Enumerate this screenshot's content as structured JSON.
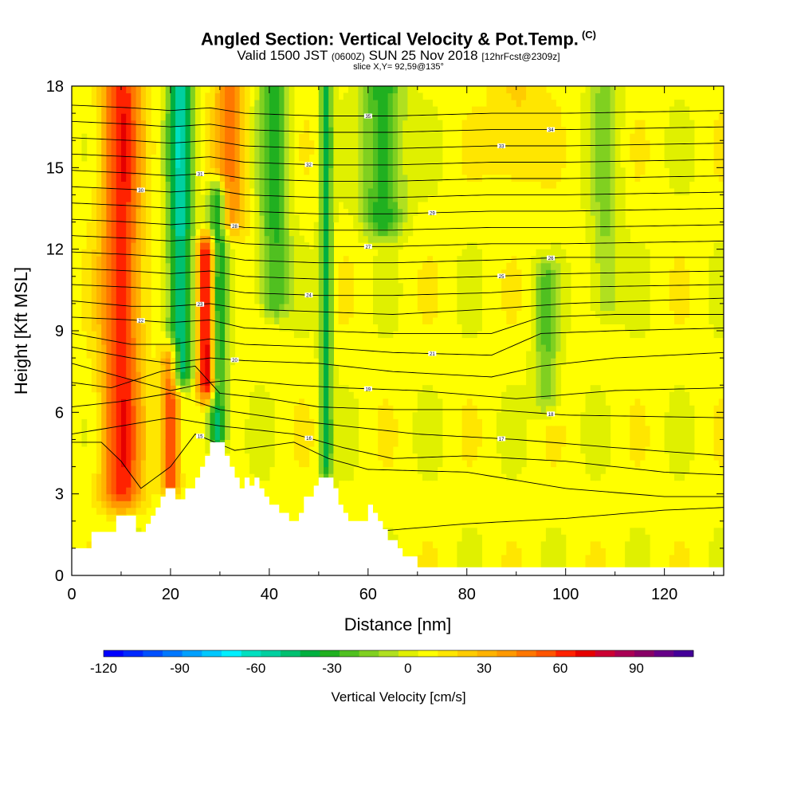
{
  "header": {
    "title": "Angled Section: Vertical Velocity & Pot.Temp.",
    "title_unit": "(C)",
    "valid_prefix": "Valid 1500 JST",
    "valid_utc": "(0600Z)",
    "valid_date": "SUN 25 Nov 2018",
    "forecast": "[12hrFcst@2309z]",
    "slice": "slice X,Y= 92,59@135°"
  },
  "chart_data": {
    "type": "heatmap",
    "xlabel": "Distance [nm]",
    "ylabel": "Height [Kft MSL]",
    "xlim": [
      0,
      132
    ],
    "ylim": [
      0,
      18
    ],
    "x_ticks": [
      0,
      20,
      40,
      60,
      80,
      100,
      120
    ],
    "y_ticks": [
      0,
      3,
      6,
      9,
      12,
      15,
      18
    ],
    "colorbar": {
      "label": "Vertical Velocity [cm/s]",
      "range": [
        -120,
        112.5
      ],
      "step": 7.5,
      "tick_values": [
        -120,
        -90,
        -60,
        -30,
        0,
        30,
        60,
        90
      ],
      "colors": [
        "#0000ff",
        "#0028ff",
        "#0050ff",
        "#0078ff",
        "#00a0ff",
        "#00c8ff",
        "#00f0ff",
        "#00e0c0",
        "#00d0a0",
        "#00c070",
        "#00b040",
        "#20b020",
        "#50c020",
        "#80d020",
        "#b0e020",
        "#e0f000",
        "#ffff00",
        "#ffe600",
        "#ffcc00",
        "#ffb300",
        "#ff9900",
        "#ff7700",
        "#ff5500",
        "#ff2200",
        "#e60000",
        "#cc0033",
        "#aa0055",
        "#880066",
        "#660088",
        "#440099"
      ]
    },
    "velocity_features": [
      {
        "x_center": 10,
        "width": 4,
        "z_bottom": 3,
        "z_top": 18,
        "peak_cm_s": 55
      },
      {
        "x_center": 20,
        "width": 1.8,
        "z_bottom": 3.5,
        "z_top": 8,
        "peak_cm_s": 55
      },
      {
        "x_center": 22,
        "width": 2.5,
        "z_bottom": 7.5,
        "z_top": 18,
        "peak_cm_s": -60
      },
      {
        "x_center": 27.5,
        "width": 2,
        "z_bottom": 7,
        "z_top": 12,
        "peak_cm_s": 75
      },
      {
        "x_center": 29.5,
        "width": 1.8,
        "z_bottom": 5,
        "z_top": 14,
        "peak_cm_s": -55
      },
      {
        "x_center": 32,
        "width": 3,
        "z_bottom": 13,
        "z_top": 18,
        "peak_cm_s": 35
      },
      {
        "x_center": 41,
        "width": 3,
        "z_bottom": 10,
        "z_top": 18,
        "peak_cm_s": -35
      },
      {
        "x_center": 51.5,
        "width": 1.2,
        "z_bottom": 4,
        "z_top": 18,
        "peak_cm_s": -45
      },
      {
        "x_center": 63,
        "width": 4,
        "z_bottom": 13,
        "z_top": 18,
        "peak_cm_s": -40
      },
      {
        "x_center": 96,
        "width": 2.5,
        "z_bottom": 6.5,
        "z_top": 11,
        "peak_cm_s": -25
      },
      {
        "x_center": 108,
        "width": 3,
        "z_bottom": 10,
        "z_top": 18,
        "peak_cm_s": -20
      },
      {
        "x_center": 90,
        "width": 5,
        "z_bottom": 15,
        "z_top": 18,
        "peak_cm_s": 15
      }
    ],
    "terrain": {
      "x": [
        0,
        4,
        4,
        9,
        9,
        13,
        13,
        15,
        15,
        16,
        16,
        17,
        17,
        18,
        18,
        19,
        19,
        21,
        21,
        23,
        23,
        25,
        25,
        26,
        26,
        27,
        27,
        28,
        28,
        31,
        31,
        32,
        32,
        33,
        33,
        34,
        34,
        35,
        35,
        36,
        36,
        37,
        37,
        38,
        38,
        39,
        39,
        40,
        40,
        42,
        42,
        44,
        44,
        46,
        46,
        47,
        47,
        49,
        49,
        50,
        50,
        53,
        53,
        54,
        54,
        55,
        55,
        56,
        56,
        60,
        60,
        61,
        61,
        62,
        62,
        63,
        63,
        64,
        64,
        66,
        66,
        67,
        67,
        70,
        70
      ],
      "z": [
        1,
        1,
        1.6,
        1.6,
        2.2,
        2.2,
        1.6,
        1.6,
        1.9,
        1.9,
        2.2,
        2.2,
        2.5,
        2.5,
        2.9,
        2.9,
        3.2,
        3.2,
        2.8,
        2.8,
        3.2,
        3.2,
        3.6,
        3.6,
        4.0,
        4.0,
        4.4,
        4.4,
        4.9,
        4.9,
        4.4,
        4.4,
        4.0,
        4.0,
        3.6,
        3.6,
        3.2,
        3.2,
        3.6,
        3.6,
        3.3,
        3.3,
        3.6,
        3.6,
        3.2,
        3.2,
        2.9,
        2.9,
        2.6,
        2.6,
        2.3,
        2.3,
        2.0,
        2.0,
        2.3,
        2.3,
        2.9,
        2.9,
        3.3,
        3.3,
        3.6,
        3.6,
        3.2,
        3.2,
        2.6,
        2.6,
        2.3,
        2.3,
        2.0,
        2.0,
        2.6,
        2.6,
        2.3,
        2.3,
        2.0,
        2.0,
        1.7,
        1.7,
        1.3,
        1.3,
        1.0,
        1.0,
        0.7,
        0.7,
        0.3
      ]
    },
    "isentropes": [
      {
        "label": "14",
        "z_at": [
          [
            0,
            0.9
          ],
          [
            20,
            0.8
          ],
          [
            40,
            1.0
          ],
          [
            60,
            1.6
          ],
          [
            80,
            1.9
          ],
          [
            100,
            2.1
          ],
          [
            120,
            2.4
          ],
          [
            132,
            2.5
          ]
        ]
      },
      {
        "label": "15",
        "z_at": [
          [
            0,
            4.9
          ],
          [
            6,
            4.9
          ],
          [
            10,
            4.2
          ],
          [
            14,
            3.2
          ],
          [
            20,
            4.0
          ],
          [
            25,
            5.2
          ],
          [
            33,
            4.6
          ],
          [
            45,
            4.9
          ],
          [
            52,
            4.3
          ],
          [
            60,
            3.9
          ],
          [
            80,
            3.8
          ],
          [
            100,
            3.2
          ],
          [
            120,
            2.9
          ],
          [
            132,
            2.9
          ]
        ]
      },
      {
        "label": "16",
        "z_at": [
          [
            0,
            5.2
          ],
          [
            10,
            5.5
          ],
          [
            20,
            5.8
          ],
          [
            30,
            5.5
          ],
          [
            45,
            5.2
          ],
          [
            55,
            4.7
          ],
          [
            65,
            4.3
          ],
          [
            80,
            4.4
          ],
          [
            100,
            4.2
          ],
          [
            120,
            3.8
          ],
          [
            132,
            3.7
          ]
        ]
      },
      {
        "label": "17",
        "z_at": [
          [
            0,
            6.2
          ],
          [
            10,
            6.4
          ],
          [
            20,
            6.7
          ],
          [
            30,
            6.1
          ],
          [
            45,
            5.7
          ],
          [
            55,
            5.5
          ],
          [
            70,
            5.2
          ],
          [
            90,
            5.0
          ],
          [
            110,
            4.7
          ],
          [
            132,
            4.4
          ]
        ]
      },
      {
        "label": "18",
        "z_at": [
          [
            0,
            7.1
          ],
          [
            8,
            6.9
          ],
          [
            18,
            7.5
          ],
          [
            25,
            7.7
          ],
          [
            30,
            6.7
          ],
          [
            40,
            6.5
          ],
          [
            50,
            6.2
          ],
          [
            65,
            6.1
          ],
          [
            85,
            6.1
          ],
          [
            100,
            5.9
          ],
          [
            132,
            5.8
          ]
        ]
      },
      {
        "label": "19",
        "z_at": [
          [
            0,
            7.8
          ],
          [
            10,
            7.3
          ],
          [
            20,
            6.8
          ],
          [
            28,
            7.1
          ],
          [
            33,
            7.2
          ],
          [
            45,
            7.0
          ],
          [
            55,
            6.9
          ],
          [
            70,
            6.8
          ],
          [
            90,
            6.5
          ],
          [
            110,
            6.8
          ],
          [
            132,
            6.9
          ]
        ]
      },
      {
        "label": "20",
        "z_at": [
          [
            0,
            8.4
          ],
          [
            12,
            8.0
          ],
          [
            20,
            7.8
          ],
          [
            28,
            8.0
          ],
          [
            35,
            7.9
          ],
          [
            50,
            7.8
          ],
          [
            65,
            7.5
          ],
          [
            85,
            7.3
          ],
          [
            95,
            7.7
          ],
          [
            110,
            8.0
          ],
          [
            132,
            8.2
          ]
        ]
      },
      {
        "label": "21",
        "z_at": [
          [
            0,
            8.9
          ],
          [
            12,
            8.5
          ],
          [
            20,
            8.5
          ],
          [
            28,
            8.7
          ],
          [
            35,
            8.5
          ],
          [
            50,
            8.4
          ],
          [
            65,
            8.2
          ],
          [
            85,
            8.1
          ],
          [
            95,
            8.9
          ],
          [
            110,
            9.0
          ],
          [
            132,
            9.1
          ]
        ]
      },
      {
        "label": "22",
        "z_at": [
          [
            0,
            9.5
          ],
          [
            12,
            9.4
          ],
          [
            20,
            9.3
          ],
          [
            28,
            9.4
          ],
          [
            35,
            9.1
          ],
          [
            50,
            9.0
          ],
          [
            65,
            8.9
          ],
          [
            85,
            8.9
          ],
          [
            95,
            9.5
          ],
          [
            110,
            9.6
          ],
          [
            132,
            9.6
          ]
        ]
      },
      {
        "label": "23",
        "z_at": [
          [
            0,
            10.1
          ],
          [
            12,
            9.9
          ],
          [
            20,
            9.9
          ],
          [
            28,
            10.0
          ],
          [
            35,
            9.8
          ],
          [
            50,
            9.7
          ],
          [
            65,
            9.6
          ],
          [
            85,
            9.8
          ],
          [
            100,
            10.0
          ],
          [
            132,
            10.2
          ]
        ]
      },
      {
        "label": "24",
        "z_at": [
          [
            0,
            10.7
          ],
          [
            12,
            10.6
          ],
          [
            20,
            10.5
          ],
          [
            28,
            10.6
          ],
          [
            35,
            10.4
          ],
          [
            50,
            10.3
          ],
          [
            65,
            10.3
          ],
          [
            85,
            10.4
          ],
          [
            100,
            10.6
          ],
          [
            132,
            10.7
          ]
        ]
      },
      {
        "label": "25",
        "z_at": [
          [
            0,
            11.3
          ],
          [
            12,
            11.2
          ],
          [
            20,
            11.1
          ],
          [
            28,
            11.2
          ],
          [
            35,
            11.0
          ],
          [
            50,
            10.9
          ],
          [
            65,
            10.9
          ],
          [
            85,
            11.0
          ],
          [
            100,
            11.1
          ],
          [
            132,
            11.2
          ]
        ]
      },
      {
        "label": "26",
        "z_at": [
          [
            0,
            11.9
          ],
          [
            12,
            11.8
          ],
          [
            20,
            11.7
          ],
          [
            28,
            11.8
          ],
          [
            35,
            11.6
          ],
          [
            50,
            11.5
          ],
          [
            65,
            11.5
          ],
          [
            85,
            11.6
          ],
          [
            100,
            11.7
          ],
          [
            132,
            11.7
          ]
        ]
      },
      {
        "label": "27",
        "z_at": [
          [
            0,
            12.5
          ],
          [
            12,
            12.4
          ],
          [
            20,
            12.3
          ],
          [
            28,
            12.4
          ],
          [
            35,
            12.2
          ],
          [
            50,
            12.1
          ],
          [
            65,
            12.1
          ],
          [
            85,
            12.2
          ],
          [
            100,
            12.2
          ],
          [
            132,
            12.3
          ]
        ]
      },
      {
        "label": "28",
        "z_at": [
          [
            0,
            13.1
          ],
          [
            12,
            13.0
          ],
          [
            20,
            12.9
          ],
          [
            28,
            13.0
          ],
          [
            35,
            12.8
          ],
          [
            50,
            12.7
          ],
          [
            65,
            12.7
          ],
          [
            85,
            12.8
          ],
          [
            100,
            12.8
          ],
          [
            132,
            12.9
          ]
        ]
      },
      {
        "label": "29",
        "z_at": [
          [
            0,
            13.7
          ],
          [
            12,
            13.6
          ],
          [
            20,
            13.5
          ],
          [
            28,
            13.6
          ],
          [
            35,
            13.4
          ],
          [
            50,
            13.3
          ],
          [
            65,
            13.3
          ],
          [
            85,
            13.4
          ],
          [
            100,
            13.4
          ],
          [
            132,
            13.5
          ]
        ]
      },
      {
        "label": "30",
        "z_at": [
          [
            0,
            14.3
          ],
          [
            12,
            14.2
          ],
          [
            20,
            14.1
          ],
          [
            28,
            14.2
          ],
          [
            35,
            14.0
          ],
          [
            50,
            13.9
          ],
          [
            65,
            13.9
          ],
          [
            85,
            14.0
          ],
          [
            100,
            14.0
          ],
          [
            132,
            14.1
          ]
        ]
      },
      {
        "label": "31",
        "z_at": [
          [
            0,
            14.9
          ],
          [
            12,
            14.8
          ],
          [
            20,
            14.7
          ],
          [
            28,
            14.8
          ],
          [
            35,
            14.6
          ],
          [
            50,
            14.5
          ],
          [
            65,
            14.5
          ],
          [
            85,
            14.6
          ],
          [
            100,
            14.6
          ],
          [
            132,
            14.7
          ]
        ]
      },
      {
        "label": "32",
        "z_at": [
          [
            0,
            15.5
          ],
          [
            12,
            15.4
          ],
          [
            20,
            15.3
          ],
          [
            28,
            15.4
          ],
          [
            35,
            15.2
          ],
          [
            50,
            15.1
          ],
          [
            65,
            15.1
          ],
          [
            85,
            15.2
          ],
          [
            100,
            15.2
          ],
          [
            132,
            15.3
          ]
        ]
      },
      {
        "label": "33",
        "z_at": [
          [
            0,
            16.1
          ],
          [
            12,
            16.0
          ],
          [
            20,
            15.9
          ],
          [
            28,
            16.0
          ],
          [
            35,
            15.8
          ],
          [
            50,
            15.7
          ],
          [
            65,
            15.7
          ],
          [
            85,
            15.8
          ],
          [
            100,
            15.8
          ],
          [
            132,
            15.9
          ]
        ]
      },
      {
        "label": "34",
        "z_at": [
          [
            0,
            16.7
          ],
          [
            12,
            16.6
          ],
          [
            20,
            16.5
          ],
          [
            28,
            16.6
          ],
          [
            35,
            16.4
          ],
          [
            50,
            16.3
          ],
          [
            65,
            16.3
          ],
          [
            85,
            16.4
          ],
          [
            100,
            16.4
          ],
          [
            132,
            16.5
          ]
        ]
      },
      {
        "label": "35",
        "z_at": [
          [
            0,
            17.3
          ],
          [
            12,
            17.2
          ],
          [
            20,
            17.1
          ],
          [
            28,
            17.2
          ],
          [
            35,
            17.0
          ],
          [
            50,
            16.9
          ],
          [
            65,
            16.9
          ],
          [
            85,
            17.0
          ],
          [
            100,
            17.0
          ],
          [
            132,
            17.1
          ]
        ]
      }
    ]
  }
}
